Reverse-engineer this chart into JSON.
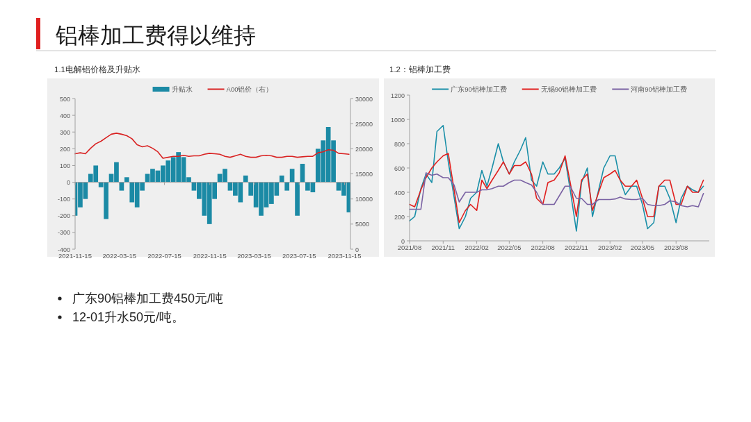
{
  "chart_data": [
    {
      "type": "bar",
      "title": "1.1电解铝价格及升贴水",
      "legend": "top",
      "x": [
        "2021-11-15",
        "2021-11-29",
        "2021-12-13",
        "2021-12-27",
        "2022-01-10",
        "2022-01-24",
        "2022-02-07",
        "2022-02-21",
        "2022-03-07",
        "2022-03-21",
        "2022-04-04",
        "2022-04-18",
        "2022-05-02",
        "2022-05-16",
        "2022-05-30",
        "2022-06-13",
        "2022-06-27",
        "2022-07-11",
        "2022-07-25",
        "2022-08-08",
        "2022-08-22",
        "2022-09-05",
        "2022-09-19",
        "2022-10-03",
        "2022-10-17",
        "2022-10-31",
        "2022-11-14",
        "2022-11-28",
        "2022-12-12",
        "2022-12-26",
        "2023-01-09",
        "2023-01-23",
        "2023-02-06",
        "2023-02-20",
        "2023-03-06",
        "2023-03-20",
        "2023-04-03",
        "2023-04-17",
        "2023-05-01",
        "2023-05-15",
        "2023-05-29",
        "2023-06-12",
        "2023-06-26",
        "2023-07-10",
        "2023-07-24",
        "2023-08-07",
        "2023-08-21",
        "2023-09-04",
        "2023-09-18",
        "2023-10-02",
        "2023-10-16",
        "2023-10-30",
        "2023-11-13",
        "2023-11-27"
      ],
      "series": [
        {
          "name": "升贴水",
          "color": "#1b8aa5",
          "values": [
            -200,
            -150,
            -100,
            50,
            100,
            -30,
            -220,
            50,
            120,
            -50,
            30,
            -120,
            -150,
            -50,
            50,
            80,
            70,
            100,
            130,
            150,
            180,
            150,
            30,
            -50,
            -100,
            -200,
            -250,
            -100,
            50,
            80,
            -50,
            -80,
            -120,
            40,
            -80,
            -150,
            -200,
            -150,
            -130,
            -80,
            40,
            -50,
            80,
            -200,
            110,
            -50,
            -60,
            200,
            250,
            330,
            250,
            -50,
            -80,
            -180
          ]
        },
        {
          "name": "A00铝价（右）",
          "type": "line",
          "axis": "y2",
          "color": "#d92323",
          "values": [
            19000,
            19200,
            19000,
            20100,
            21000,
            21500,
            22200,
            22900,
            23100,
            22900,
            22600,
            22000,
            20800,
            20400,
            20600,
            20100,
            19400,
            18100,
            18300,
            18500,
            18500,
            18700,
            18500,
            18600,
            18600,
            18900,
            19100,
            19000,
            18900,
            18500,
            18300,
            18600,
            18900,
            18500,
            18300,
            18300,
            18600,
            18700,
            18600,
            18300,
            18300,
            18500,
            18500,
            18300,
            18400,
            18500,
            18500,
            19200,
            19400,
            19800,
            19700,
            19100,
            19000,
            18900
          ]
        }
      ],
      "xlim": [
        "2021-11-15",
        "2023-12-01"
      ],
      "xticks": [
        "2021-11-15",
        "2022-03-15",
        "2022-07-15",
        "2022-11-15",
        "2023-03-15",
        "2023-07-15",
        "2023-11-15"
      ],
      "ylim": [
        -400,
        500
      ],
      "yticks": [
        -400,
        -300,
        -200,
        -100,
        0,
        100,
        200,
        300,
        400,
        500
      ],
      "y2lim": [
        0,
        30000
      ],
      "y2ticks": [
        0,
        5000,
        10000,
        15000,
        20000,
        25000,
        30000
      ]
    },
    {
      "type": "line",
      "title": "1.2：铝棒加工费",
      "legend": "top",
      "x": [
        "2021-08-01",
        "2021-08-15",
        "2021-09-01",
        "2021-09-15",
        "2021-10-01",
        "2021-10-15",
        "2021-11-01",
        "2021-11-15",
        "2021-12-01",
        "2021-12-15",
        "2022-01-01",
        "2022-01-15",
        "2022-02-01",
        "2022-02-15",
        "2022-03-01",
        "2022-03-15",
        "2022-04-01",
        "2022-04-15",
        "2022-05-01",
        "2022-05-15",
        "2022-06-01",
        "2022-06-15",
        "2022-07-01",
        "2022-07-15",
        "2022-08-01",
        "2022-08-15",
        "2022-09-01",
        "2022-09-15",
        "2022-10-01",
        "2022-10-15",
        "2022-11-01",
        "2022-11-15",
        "2022-12-01",
        "2022-12-15",
        "2023-01-01",
        "2023-01-15",
        "2023-02-01",
        "2023-02-15",
        "2023-03-01",
        "2023-03-15",
        "2023-04-01",
        "2023-04-15",
        "2023-05-01",
        "2023-05-15",
        "2023-06-01",
        "2023-06-15",
        "2023-07-01",
        "2023-07-15",
        "2023-08-01",
        "2023-08-15",
        "2023-09-01",
        "2023-09-15",
        "2023-10-01",
        "2023-10-15"
      ],
      "series": [
        {
          "name": "广东90铝棒加工费",
          "color": "#1a8fa8",
          "values": [
            165,
            200,
            430,
            550,
            480,
            900,
            950,
            650,
            360,
            100,
            200,
            350,
            400,
            580,
            450,
            600,
            800,
            650,
            550,
            650,
            750,
            850,
            500,
            450,
            650,
            550,
            550,
            600,
            680,
            420,
            80,
            480,
            600,
            200,
            420,
            600,
            700,
            700,
            500,
            380,
            450,
            450,
            300,
            100,
            150,
            450,
            450,
            350,
            150,
            350,
            450,
            420,
            400,
            450
          ]
        },
        {
          "name": "无锡90铝棒加工费",
          "color": "#e0201f",
          "values": [
            300,
            280,
            420,
            520,
            600,
            650,
            700,
            720,
            420,
            150,
            250,
            300,
            250,
            500,
            430,
            500,
            580,
            650,
            550,
            620,
            620,
            650,
            550,
            350,
            300,
            480,
            500,
            560,
            700,
            480,
            200,
            500,
            550,
            250,
            400,
            520,
            550,
            580,
            500,
            450,
            450,
            500,
            350,
            200,
            200,
            450,
            500,
            500,
            300,
            300,
            450,
            400,
            400,
            500
          ]
        },
        {
          "name": "河南90铝棒加工费",
          "color": "#7a62a3",
          "values": [
            260,
            260,
            260,
            560,
            540,
            550,
            520,
            520,
            460,
            320,
            400,
            400,
            400,
            420,
            420,
            430,
            450,
            450,
            480,
            500,
            500,
            480,
            460,
            400,
            300,
            300,
            300,
            370,
            450,
            450,
            350,
            350,
            300,
            300,
            340,
            340,
            340,
            345,
            360,
            345,
            340,
            340,
            350,
            300,
            290,
            290,
            300,
            330,
            320,
            290,
            280,
            290,
            280,
            390
          ]
        }
      ],
      "xlim": [
        "2021-08-01",
        "2023-10-31"
      ],
      "xticks": [
        {
          "value": "2021-08-01",
          "label": "2021/08"
        },
        {
          "value": "2021-11-01",
          "label": "2021/11"
        },
        {
          "value": "2022-02-01",
          "label": "2022/02"
        },
        {
          "value": "2022-05-01",
          "label": "2022/05"
        },
        {
          "value": "2022-08-01",
          "label": "2022/08"
        },
        {
          "value": "2022-11-01",
          "label": "2022/11"
        },
        {
          "value": "2023-02-01",
          "label": "2023/02"
        },
        {
          "value": "2023-05-01",
          "label": "2023/05"
        },
        {
          "value": "2023-08-01",
          "label": "2023/08"
        }
      ],
      "ylim": [
        0,
        1200
      ],
      "yticks": [
        0,
        200,
        400,
        600,
        800,
        1000,
        1200
      ]
    },
    {
      "type": "other",
      "title": "铝棒加工费得以维持",
      "annotations": [
        "广东90铝棒加工费450元/吨",
        "12-01升水50元/吨。"
      ]
    }
  ]
}
